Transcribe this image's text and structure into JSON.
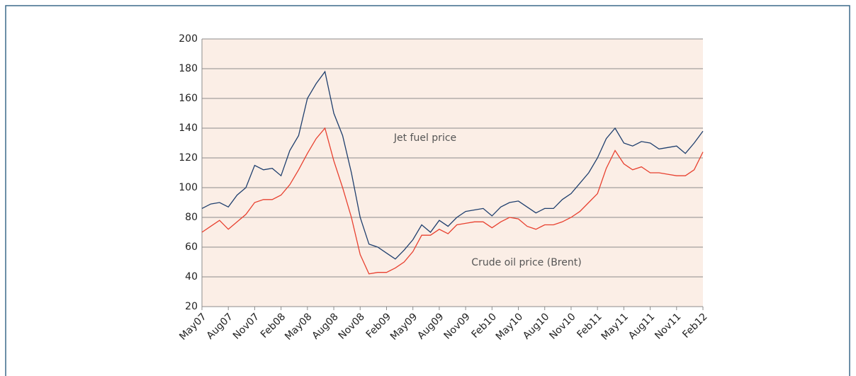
{
  "chart_data": {
    "type": "line",
    "categories": [
      "May07",
      null,
      null,
      "Aug07",
      null,
      null,
      "Nov07",
      null,
      null,
      "Feb08",
      null,
      null,
      "May08",
      null,
      null,
      "Aug08",
      null,
      null,
      "Nov08",
      null,
      null,
      "Feb09",
      null,
      null,
      "May09",
      null,
      null,
      "Aug09",
      null,
      null,
      "Nov09",
      null,
      null,
      "Feb10",
      null,
      null,
      "May10",
      null,
      null,
      "Aug10",
      null,
      null,
      "Nov10",
      null,
      null,
      "Feb11",
      null,
      null,
      "May11",
      null,
      null,
      "Aug11",
      null,
      null,
      "Nov11",
      null,
      null,
      "Feb12"
    ],
    "series": [
      {
        "name": "Jet fuel price",
        "color": "#1f3f6e",
        "values": [
          86,
          89,
          90,
          87,
          95,
          100,
          115,
          112,
          113,
          108,
          125,
          135,
          160,
          170,
          178,
          150,
          135,
          110,
          80,
          62,
          60,
          56,
          52,
          58,
          65,
          75,
          70,
          78,
          74,
          80,
          84,
          85,
          86,
          81,
          87,
          90,
          91,
          87,
          83,
          86,
          86,
          92,
          96,
          103,
          110,
          120,
          133,
          140,
          130,
          128,
          131,
          130,
          126,
          127,
          128,
          123,
          130,
          138
        ]
      },
      {
        "name": "Crude oil price (Brent)",
        "color": "#e8402f",
        "values": [
          70,
          74,
          78,
          72,
          77,
          82,
          90,
          92,
          92,
          95,
          102,
          112,
          123,
          133,
          140,
          118,
          100,
          80,
          55,
          42,
          43,
          43,
          46,
          50,
          57,
          68,
          68,
          72,
          69,
          75,
          76,
          77,
          77,
          73,
          77,
          80,
          79,
          74,
          72,
          75,
          75,
          77,
          80,
          84,
          90,
          96,
          113,
          125,
          116,
          112,
          114,
          110,
          110,
          109,
          108,
          108,
          112,
          124
        ]
      }
    ],
    "ylim": [
      20,
      200
    ],
    "yticks": [
      20,
      40,
      60,
      80,
      100,
      120,
      140,
      160,
      180,
      200
    ],
    "grid": true
  }
}
